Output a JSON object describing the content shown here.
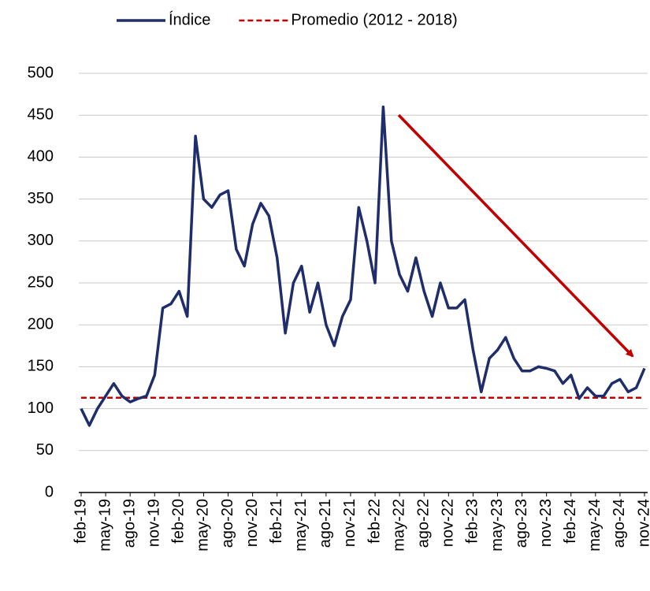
{
  "chart_data": {
    "type": "line",
    "categories": [
      "feb-19",
      null,
      null,
      "may-19",
      null,
      null,
      "ago-19",
      null,
      null,
      "nov-19",
      null,
      null,
      "feb-20",
      null,
      null,
      "may-20",
      null,
      null,
      "ago-20",
      null,
      null,
      "nov-20",
      null,
      null,
      "feb-21",
      null,
      null,
      "may-21",
      null,
      null,
      "ago-21",
      null,
      null,
      "nov-21",
      null,
      null,
      "feb-22",
      null,
      null,
      "may-22",
      null,
      null,
      "ago-22",
      null,
      null,
      "nov-22",
      null,
      null,
      "feb-23",
      null,
      null,
      "may-23",
      null,
      null,
      "ago-23",
      null,
      null,
      "nov-23",
      null,
      null,
      "feb-24",
      null,
      null,
      "may-24",
      null,
      null,
      "ago-24",
      null,
      null,
      "nov-24"
    ],
    "series": [
      {
        "name": "Índice",
        "color": "#1f2d6b",
        "values": [
          100,
          80,
          100,
          115,
          130,
          115,
          108,
          112,
          115,
          140,
          220,
          225,
          240,
          210,
          425,
          350,
          340,
          355,
          360,
          290,
          270,
          320,
          345,
          330,
          280,
          190,
          250,
          270,
          215,
          250,
          200,
          175,
          210,
          230,
          340,
          300,
          250,
          460,
          300,
          260,
          240,
          280,
          240,
          210,
          250,
          220,
          220,
          230,
          170,
          120,
          160,
          170,
          185,
          160,
          145,
          145,
          150,
          148,
          145,
          130,
          140,
          112,
          125,
          115,
          115,
          130,
          135,
          120,
          125,
          148
        ]
      }
    ],
    "reference_lines": [
      {
        "name": "Promedio (2012 - 2018)",
        "value": 113,
        "color": "#c00000"
      }
    ],
    "ylim": [
      0,
      500
    ],
    "yticks": [
      0,
      50,
      100,
      150,
      200,
      250,
      300,
      350,
      400,
      450,
      500
    ],
    "grid": true
  }
}
